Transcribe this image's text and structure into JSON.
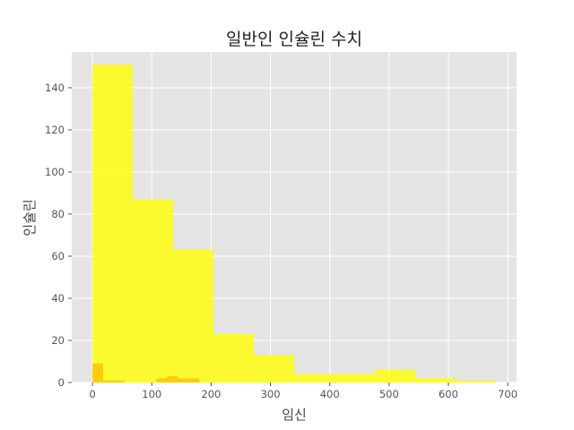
{
  "chart_data": {
    "type": "bar",
    "title": "일반인 인슐린 수치",
    "xlabel": "임신",
    "ylabel": "인슐린",
    "xlim": [
      -35,
      715
    ],
    "ylim": [
      0,
      157
    ],
    "xticks": [
      0,
      100,
      200,
      300,
      400,
      500,
      600,
      700
    ],
    "yticks": [
      0,
      20,
      40,
      60,
      80,
      100,
      120,
      140
    ],
    "grid": true,
    "background_color": "#e5e5e5",
    "grid_color": "#ffffff",
    "series": [
      {
        "color": "#ffff00",
        "opacity": 0.8,
        "bins": [
          {
            "x0": 0,
            "x1": 68,
            "value": 151
          },
          {
            "x0": 68,
            "x1": 136,
            "value": 87
          },
          {
            "x0": 136,
            "x1": 204,
            "value": 63
          },
          {
            "x0": 204,
            "x1": 272,
            "value": 23
          },
          {
            "x0": 272,
            "x1": 340,
            "value": 13
          },
          {
            "x0": 340,
            "x1": 408,
            "value": 4
          },
          {
            "x0": 408,
            "x1": 476,
            "value": 4
          },
          {
            "x0": 476,
            "x1": 544,
            "value": 6
          },
          {
            "x0": 544,
            "x1": 612,
            "value": 2
          },
          {
            "x0": 612,
            "x1": 680,
            "value": 1
          }
        ]
      },
      {
        "color": "#ffc000",
        "opacity": 0.8,
        "bins": [
          {
            "x0": 0,
            "x1": 18,
            "value": 9
          },
          {
            "x0": 18,
            "x1": 36,
            "value": 1
          },
          {
            "x0": 36,
            "x1": 54,
            "value": 1
          },
          {
            "x0": 54,
            "x1": 72,
            "value": 0
          },
          {
            "x0": 72,
            "x1": 90,
            "value": 0
          },
          {
            "x0": 90,
            "x1": 108,
            "value": 0
          },
          {
            "x0": 108,
            "x1": 126,
            "value": 2
          },
          {
            "x0": 126,
            "x1": 144,
            "value": 3
          },
          {
            "x0": 144,
            "x1": 162,
            "value": 2
          },
          {
            "x0": 162,
            "x1": 180,
            "value": 2
          }
        ]
      }
    ]
  }
}
